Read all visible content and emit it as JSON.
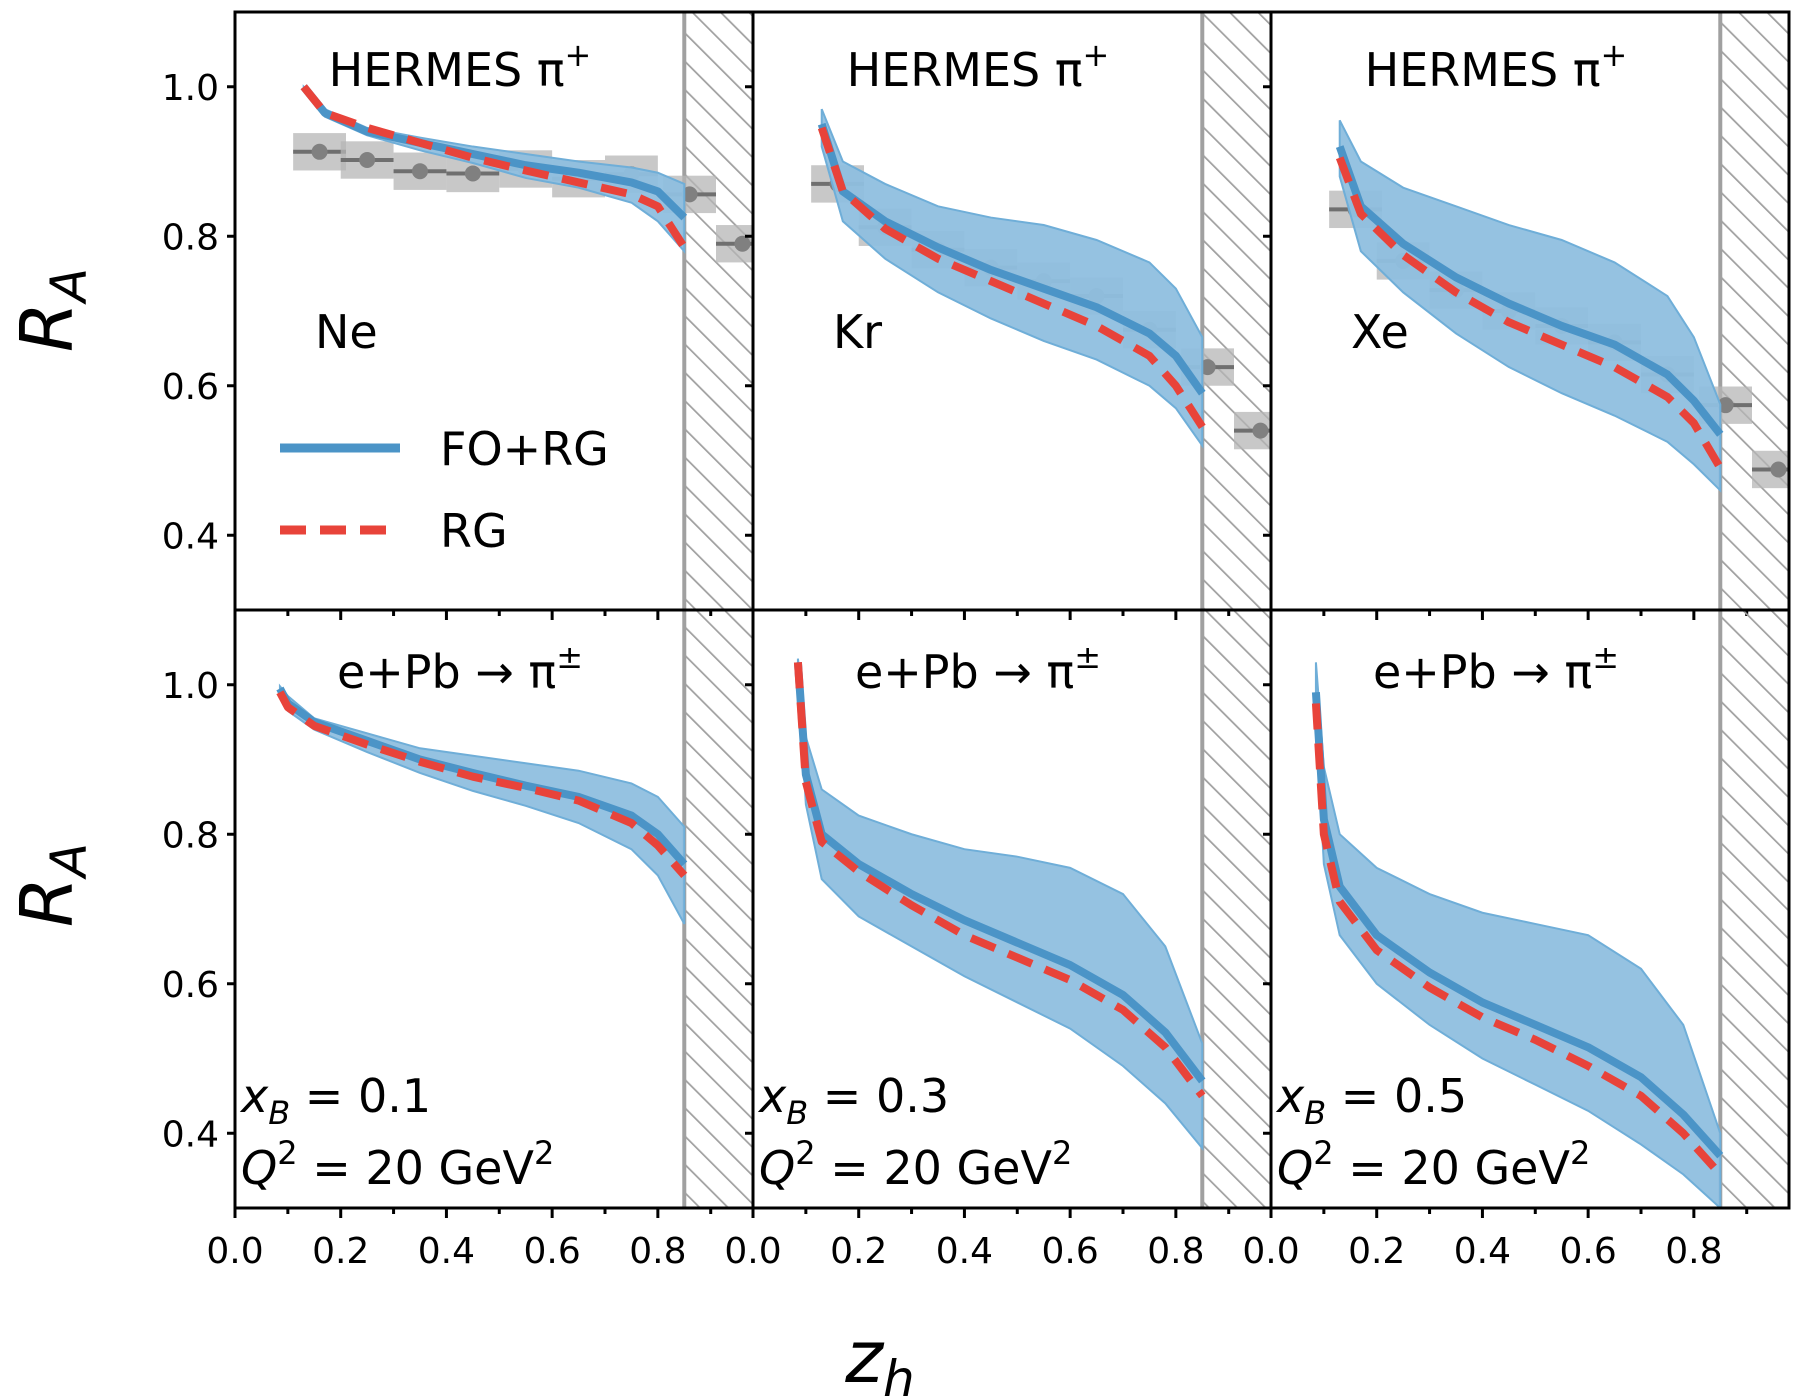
{
  "figure": {
    "ylabel_main": "R",
    "ylabel_sub": "A",
    "xlabel_main": "z",
    "xlabel_sub": "h"
  },
  "legend": [
    {
      "label": "FO+RG",
      "color": "#4b94c7",
      "style": "solid"
    },
    {
      "label": "RG",
      "color": "#e8433a",
      "style": "dashed"
    }
  ],
  "colors": {
    "fo_rg": "#4b94c7",
    "band": "#8fbfdf",
    "rg": "#e8433a",
    "data": "#808080",
    "data_box": "#b5b5b5",
    "hatch": "#a0a0a0"
  },
  "chart_data": [
    {
      "type": "line",
      "row": 0,
      "col": 0,
      "title_text": "HERMES π",
      "title_sup": "+",
      "nucleus": "Ne",
      "xlim": [
        0,
        0.98
      ],
      "ylim": [
        0.3,
        1.1
      ],
      "xticks": [
        "0.0",
        "0.2",
        "0.4",
        "0.6",
        "0.8"
      ],
      "yticks": [
        "0.4",
        "0.6",
        "0.8",
        "1.0"
      ],
      "cut_region": [
        0.85,
        0.98
      ],
      "fo_rg": {
        "x": [
          0.13,
          0.17,
          0.25,
          0.35,
          0.45,
          0.55,
          0.65,
          0.75,
          0.8,
          0.85
        ],
        "y": [
          1.0,
          0.965,
          0.94,
          0.925,
          0.91,
          0.895,
          0.885,
          0.872,
          0.86,
          0.825
        ]
      },
      "band_upper": [
        1.0,
        0.97,
        0.945,
        0.932,
        0.92,
        0.91,
        0.9,
        0.892,
        0.885,
        0.87
      ],
      "band_lower": [
        0.995,
        0.96,
        0.935,
        0.915,
        0.898,
        0.878,
        0.865,
        0.845,
        0.82,
        0.78
      ],
      "rg": {
        "x": [
          0.13,
          0.17,
          0.25,
          0.35,
          0.45,
          0.55,
          0.65,
          0.75,
          0.8,
          0.85
        ],
        "y": [
          1.0,
          0.965,
          0.945,
          0.925,
          0.905,
          0.888,
          0.872,
          0.856,
          0.84,
          0.785
        ]
      },
      "data": {
        "x": [
          0.16,
          0.25,
          0.35,
          0.45,
          0.55,
          0.65,
          0.75,
          0.86,
          0.96
        ],
        "y": [
          0.913,
          0.902,
          0.887,
          0.884,
          0.89,
          0.877,
          0.883,
          0.856,
          0.79
        ],
        "xerr": 0.05,
        "yerr": 0.025
      }
    },
    {
      "type": "line",
      "row": 0,
      "col": 1,
      "title_text": "HERMES π",
      "title_sup": "+",
      "nucleus": "Kr",
      "xlim": [
        0,
        0.98
      ],
      "ylim": [
        0.3,
        1.1
      ],
      "xticks": [
        "0.0",
        "0.2",
        "0.4",
        "0.6",
        "0.8"
      ],
      "yticks": [],
      "cut_region": [
        0.85,
        0.98
      ],
      "fo_rg": {
        "x": [
          0.13,
          0.17,
          0.25,
          0.35,
          0.45,
          0.55,
          0.65,
          0.75,
          0.8,
          0.85
        ],
        "y": [
          0.95,
          0.86,
          0.82,
          0.785,
          0.755,
          0.73,
          0.705,
          0.67,
          0.64,
          0.59
        ]
      },
      "band_upper": [
        0.97,
        0.9,
        0.87,
        0.84,
        0.825,
        0.815,
        0.795,
        0.765,
        0.73,
        0.665
      ],
      "band_lower": [
        0.92,
        0.82,
        0.77,
        0.725,
        0.69,
        0.66,
        0.635,
        0.6,
        0.57,
        0.52
      ],
      "rg": {
        "x": [
          0.13,
          0.17,
          0.25,
          0.35,
          0.45,
          0.55,
          0.65,
          0.75,
          0.8,
          0.85
        ],
        "y": [
          0.945,
          0.86,
          0.81,
          0.77,
          0.74,
          0.71,
          0.68,
          0.64,
          0.6,
          0.545
        ]
      },
      "data": {
        "x": [
          0.16,
          0.25,
          0.35,
          0.45,
          0.55,
          0.65,
          0.75,
          0.86,
          0.96
        ],
        "y": [
          0.87,
          0.812,
          0.782,
          0.758,
          0.74,
          0.72,
          0.675,
          0.625,
          0.54
        ],
        "xerr": 0.05,
        "yerr": 0.025
      }
    },
    {
      "type": "line",
      "row": 0,
      "col": 2,
      "title_text": "HERMES π",
      "title_sup": "+",
      "nucleus": "Xe",
      "xlim": [
        0,
        0.98
      ],
      "ylim": [
        0.3,
        1.1
      ],
      "xticks": [
        "0.0",
        "0.2",
        "0.4",
        "0.6",
        "0.8"
      ],
      "yticks": [],
      "cut_region": [
        0.85,
        0.98
      ],
      "fo_rg": {
        "x": [
          0.13,
          0.17,
          0.25,
          0.35,
          0.45,
          0.55,
          0.65,
          0.75,
          0.8,
          0.85
        ],
        "y": [
          0.92,
          0.84,
          0.79,
          0.745,
          0.71,
          0.68,
          0.655,
          0.615,
          0.58,
          0.535
        ]
      },
      "band_upper": [
        0.955,
        0.9,
        0.865,
        0.84,
        0.815,
        0.795,
        0.765,
        0.72,
        0.665,
        0.575
      ],
      "band_lower": [
        0.88,
        0.78,
        0.725,
        0.67,
        0.625,
        0.59,
        0.56,
        0.525,
        0.495,
        0.46
      ],
      "rg": {
        "x": [
          0.13,
          0.17,
          0.25,
          0.35,
          0.45,
          0.55,
          0.65,
          0.75,
          0.8,
          0.85
        ],
        "y": [
          0.905,
          0.83,
          0.775,
          0.725,
          0.685,
          0.655,
          0.625,
          0.585,
          0.55,
          0.49
        ]
      },
      "data": {
        "x": [
          0.16,
          0.25,
          0.35,
          0.45,
          0.55,
          0.65,
          0.75,
          0.86,
          0.96
        ],
        "y": [
          0.836,
          0.767,
          0.728,
          0.7,
          0.68,
          0.658,
          0.615,
          0.574,
          0.488
        ],
        "xerr": 0.05,
        "yerr": 0.025
      }
    },
    {
      "type": "line",
      "row": 1,
      "col": 0,
      "title_text": "e+Pb → π",
      "title_sup": "±",
      "xB_label": "x",
      "xB_sub": "B",
      "xB_value": " = 0.1",
      "Q2_label": "Q",
      "Q2_sup": "2",
      "Q2_value": " = 20 GeV",
      "Q2_unit_sup": "2",
      "xlim": [
        0,
        0.98
      ],
      "ylim": [
        0.3,
        1.1
      ],
      "xticks": [
        "0.0",
        "0.2",
        "0.4",
        "0.6",
        "0.8"
      ],
      "yticks": [
        "0.4",
        "0.6",
        "0.8",
        "1.0"
      ],
      "cut_region": [
        0.85,
        0.98
      ],
      "fo_rg": {
        "x": [
          0.085,
          0.1,
          0.15,
          0.25,
          0.35,
          0.45,
          0.55,
          0.65,
          0.75,
          0.8,
          0.85
        ],
        "y": [
          0.995,
          0.975,
          0.95,
          0.925,
          0.9,
          0.882,
          0.865,
          0.85,
          0.825,
          0.8,
          0.76
        ]
      },
      "band_upper": [
        0.998,
        0.985,
        0.955,
        0.935,
        0.915,
        0.905,
        0.895,
        0.885,
        0.868,
        0.85,
        0.81
      ],
      "band_lower": [
        0.99,
        0.965,
        0.94,
        0.91,
        0.882,
        0.858,
        0.838,
        0.815,
        0.78,
        0.745,
        0.68
      ],
      "rg": {
        "x": [
          0.085,
          0.1,
          0.15,
          0.25,
          0.35,
          0.45,
          0.55,
          0.65,
          0.75,
          0.8,
          0.85
        ],
        "y": [
          0.99,
          0.97,
          0.945,
          0.92,
          0.897,
          0.877,
          0.862,
          0.845,
          0.815,
          0.785,
          0.745
        ]
      }
    },
    {
      "type": "line",
      "row": 1,
      "col": 1,
      "title_text": "e+Pb → π",
      "title_sup": "±",
      "xB_label": "x",
      "xB_sub": "B",
      "xB_value": " = 0.3",
      "Q2_label": "Q",
      "Q2_sup": "2",
      "Q2_value": " = 20 GeV",
      "Q2_unit_sup": "2",
      "xlim": [
        0,
        0.98
      ],
      "ylim": [
        0.3,
        1.1
      ],
      "xticks": [
        "0.0",
        "0.2",
        "0.4",
        "0.6",
        "0.8"
      ],
      "yticks": [],
      "cut_region": [
        0.85,
        0.98
      ],
      "fo_rg": {
        "x": [
          0.085,
          0.1,
          0.13,
          0.2,
          0.3,
          0.4,
          0.5,
          0.6,
          0.7,
          0.78,
          0.85
        ],
        "y": [
          1.03,
          0.88,
          0.8,
          0.76,
          0.72,
          0.685,
          0.655,
          0.625,
          0.585,
          0.535,
          0.47
        ]
      },
      "band_upper": [
        1.035,
        0.93,
        0.86,
        0.825,
        0.8,
        0.78,
        0.77,
        0.755,
        0.72,
        0.65,
        0.52
      ],
      "band_lower": [
        1.02,
        0.84,
        0.74,
        0.69,
        0.65,
        0.61,
        0.575,
        0.54,
        0.49,
        0.44,
        0.38
      ],
      "rg": {
        "x": [
          0.085,
          0.1,
          0.13,
          0.2,
          0.3,
          0.4,
          0.5,
          0.6,
          0.7,
          0.78,
          0.85
        ],
        "y": [
          1.03,
          0.87,
          0.79,
          0.75,
          0.705,
          0.665,
          0.635,
          0.605,
          0.565,
          0.515,
          0.45
        ]
      }
    },
    {
      "type": "line",
      "row": 1,
      "col": 2,
      "title_text": "e+Pb → π",
      "title_sup": "±",
      "xB_label": "x",
      "xB_sub": "B",
      "xB_value": " = 0.5",
      "Q2_label": "Q",
      "Q2_sup": "2",
      "Q2_value": " = 20 GeV",
      "Q2_unit_sup": "2",
      "xlim": [
        0,
        0.98
      ],
      "ylim": [
        0.3,
        1.1
      ],
      "xticks": [
        "0.0",
        "0.2",
        "0.4",
        "0.6",
        "0.8"
      ],
      "yticks": [],
      "cut_region": [
        0.85,
        0.98
      ],
      "fo_rg": {
        "x": [
          0.085,
          0.1,
          0.13,
          0.2,
          0.3,
          0.4,
          0.5,
          0.6,
          0.7,
          0.78,
          0.85
        ],
        "y": [
          0.99,
          0.82,
          0.73,
          0.665,
          0.615,
          0.575,
          0.545,
          0.515,
          0.475,
          0.425,
          0.37
        ]
      },
      "band_upper": [
        1.03,
        0.89,
        0.8,
        0.755,
        0.72,
        0.695,
        0.68,
        0.665,
        0.62,
        0.545,
        0.4
      ],
      "band_lower": [
        0.95,
        0.76,
        0.665,
        0.6,
        0.545,
        0.5,
        0.465,
        0.43,
        0.385,
        0.345,
        0.3
      ],
      "rg": {
        "x": [
          0.085,
          0.1,
          0.13,
          0.2,
          0.3,
          0.4,
          0.5,
          0.6,
          0.7,
          0.78,
          0.85
        ],
        "y": [
          0.975,
          0.8,
          0.71,
          0.645,
          0.595,
          0.555,
          0.525,
          0.49,
          0.45,
          0.4,
          0.345
        ]
      }
    }
  ]
}
